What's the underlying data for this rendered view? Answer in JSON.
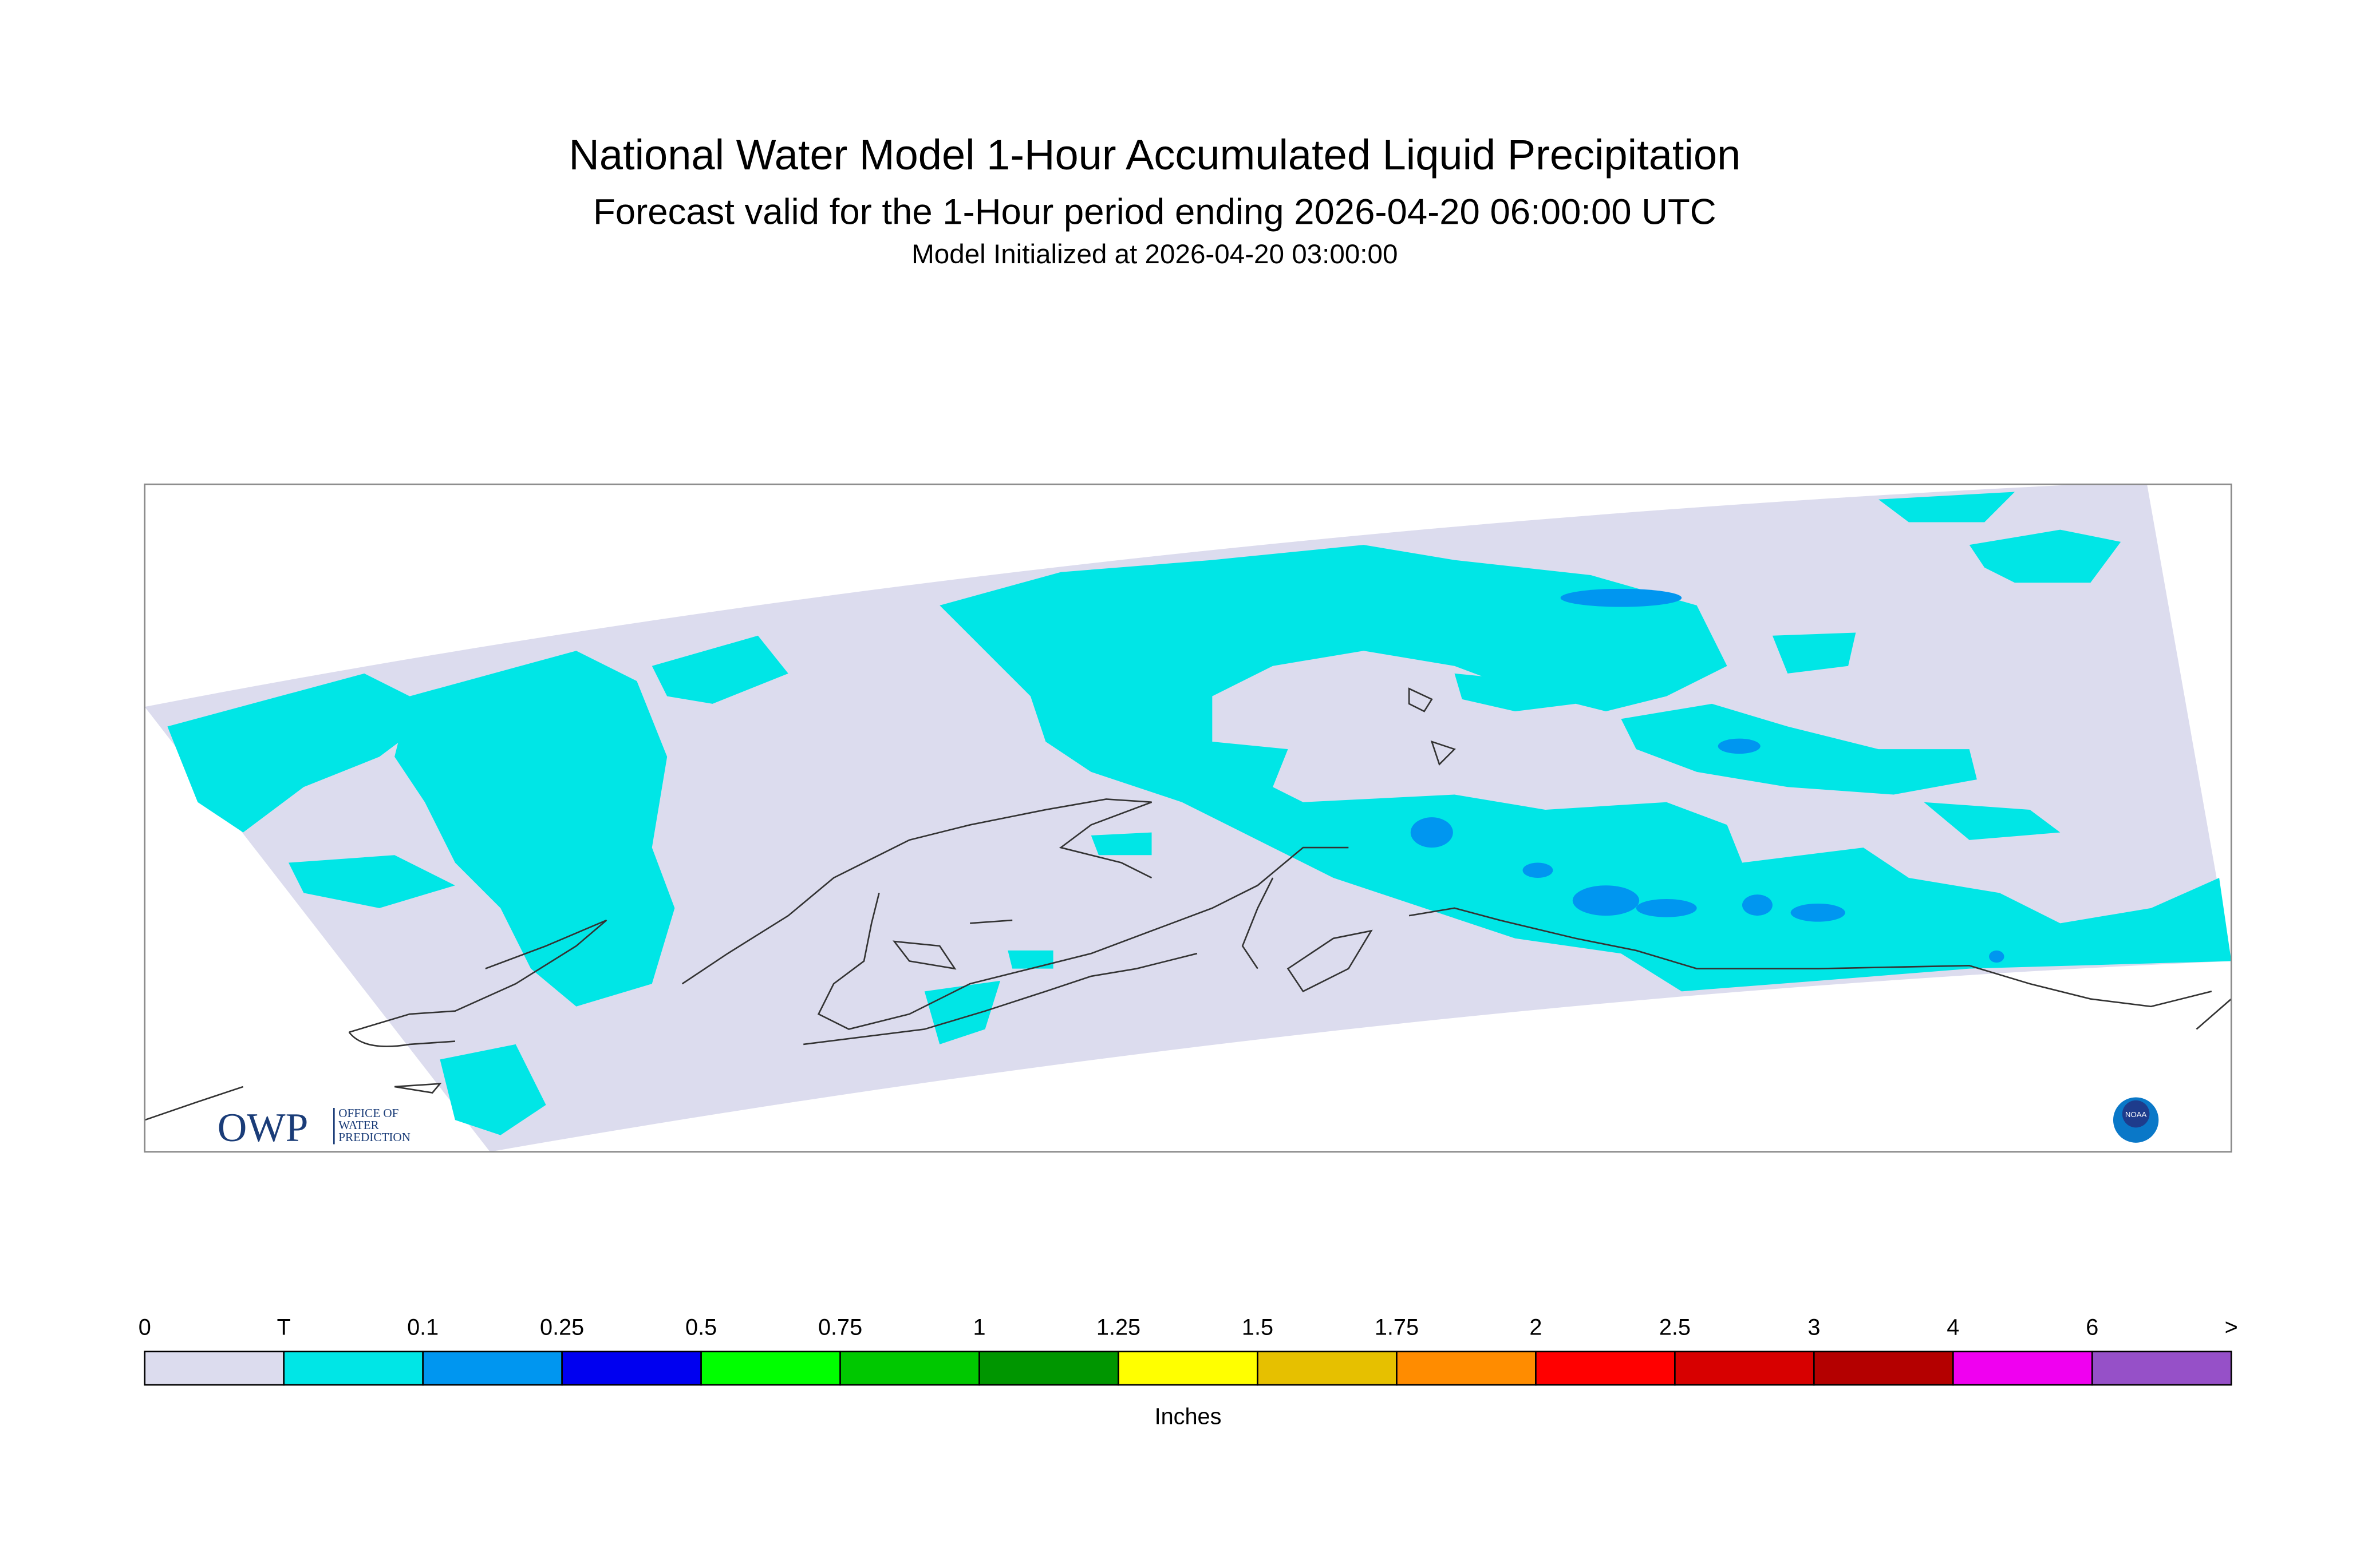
{
  "header": {
    "title": "National Water Model 1-Hour Accumulated Liquid Precipitation",
    "subtitle": "Forecast valid for the 1-Hour period ending 2026-04-20 06:00:00 UTC",
    "initialized": "Model Initialized at 2026-04-20 03:00:00"
  },
  "logos": {
    "owp": {
      "letters": "OWP",
      "lines": [
        "OFFICE OF",
        "WATER",
        "PREDICTION"
      ]
    },
    "noaa": "NOAA"
  },
  "legend": {
    "labels": [
      "0",
      "T",
      "0.1",
      "0.25",
      "0.5",
      "0.75",
      "1",
      "1.25",
      "1.5",
      "1.75",
      "2",
      "2.5",
      "3",
      "4",
      "6",
      ">"
    ],
    "colors": [
      "#dcdcee",
      "#00e6e6",
      "#0096f0",
      "#0000f0",
      "#00ff00",
      "#00c800",
      "#009600",
      "#ffff00",
      "#e6c000",
      "#ff8c00",
      "#ff0000",
      "#d70000",
      "#b40000",
      "#f000f0",
      "#9650c8"
    ],
    "unit": "Inches"
  }
}
